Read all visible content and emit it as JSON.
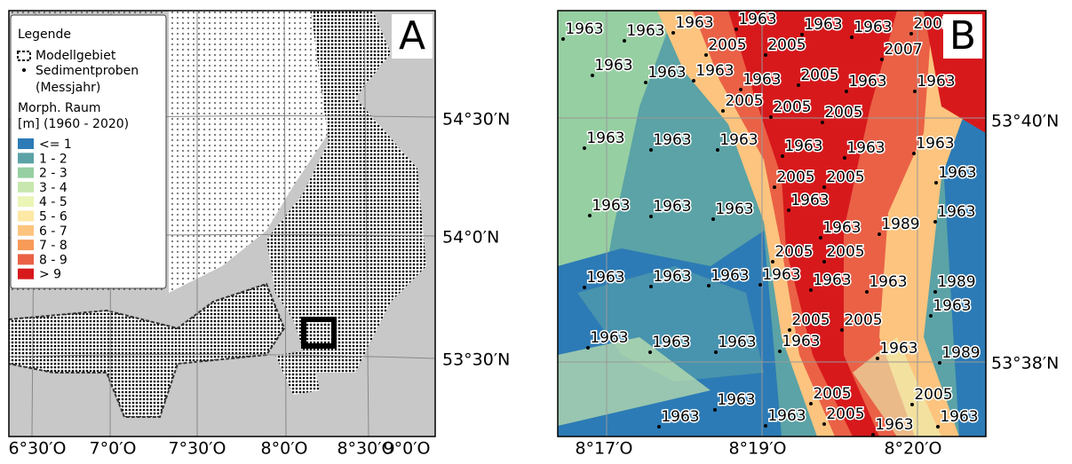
{
  "panel_a": {
    "label": "A",
    "legend": {
      "title": "Legende",
      "model_area": "Modellgebiet",
      "samples": "Sedimentproben",
      "samples_sub": "(Messjahr)",
      "range_title": "Morph. Raum",
      "range_sub": "[m] (1960 - 2020)",
      "classes": [
        {
          "label": "<= 1",
          "color": "#2c7bb6"
        },
        {
          "label": "1 - 2",
          "color": "#5ba3a6"
        },
        {
          "label": "2 - 3",
          "color": "#96cfa2"
        },
        {
          "label": "3 - 4",
          "color": "#c7e7ae"
        },
        {
          "label": "4 - 5",
          "color": "#ebf5b6"
        },
        {
          "label": "5 - 6",
          "color": "#fde8a4"
        },
        {
          "label": "6 - 7",
          "color": "#fcc47e"
        },
        {
          "label": "7 - 8",
          "color": "#f89a58"
        },
        {
          "label": "8 - 9",
          "color": "#ea6146"
        },
        {
          "label": "> 9",
          "color": "#d7191c"
        }
      ]
    },
    "lat_labels": [
      "54°30′N",
      "54°0′N",
      "53°30′N"
    ],
    "lon_labels": [
      "6°30′O",
      "7°0′O",
      "7°30′O",
      "8°0′O",
      "8°30′O",
      "9°0′O"
    ]
  },
  "panel_b": {
    "label": "B",
    "lat_labels": [
      "53°40′N",
      "53°38′N"
    ],
    "lon_labels": [
      "8°17′O",
      "8°19′O",
      "8°20′O"
    ],
    "samples": [
      "1963",
      "1963",
      "1963",
      "1963",
      "1963",
      "1963",
      "2005",
      "2005",
      "2005",
      "2007",
      "1963",
      "1963",
      "1963",
      "1963",
      "2005",
      "1963",
      "1963",
      "2005",
      "2005",
      "2005",
      "1963",
      "1963",
      "1963",
      "1963",
      "1963",
      "1963",
      "1963",
      "2005",
      "2005",
      "1963",
      "1963",
      "1963",
      "1963",
      "1963",
      "1989",
      "1963",
      "2005",
      "2005",
      "1963",
      "1963",
      "1963",
      "1963",
      "1963",
      "1963",
      "1989",
      "1963",
      "2005",
      "2005",
      "1963",
      "1963",
      "1963",
      "1963",
      "1963",
      "1989",
      "2005",
      "2005",
      "1963",
      "2005",
      "1963",
      "1963",
      "1963",
      "1963"
    ]
  }
}
